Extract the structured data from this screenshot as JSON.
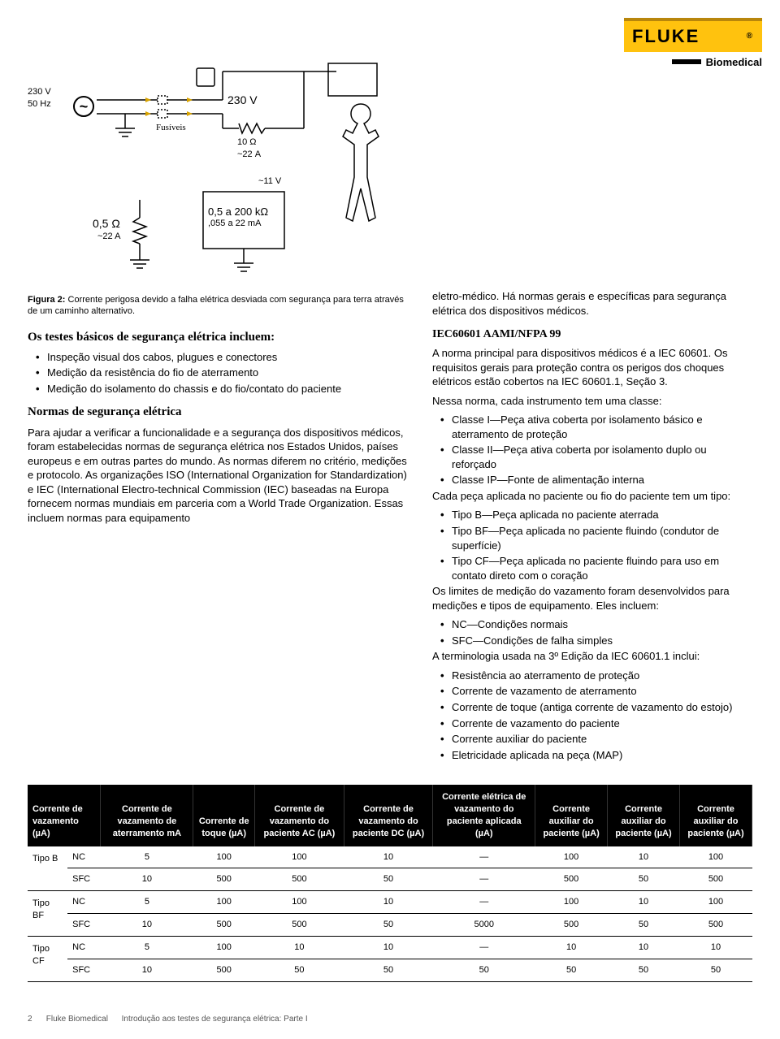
{
  "brand": {
    "name": "FLUKE",
    "reg": "®",
    "sub": "Biomedical",
    "brand_color": "#ffc20e",
    "bar_color": "#000000"
  },
  "diagram": {
    "src_v": "230 V",
    "src_f": "50 Hz",
    "fuse": "Fusíveis",
    "v230": "230 V",
    "r10": "10 Ω",
    "a22a": "~22 A",
    "r05": "0,5 Ω",
    "a22b": "~22 A",
    "v11": "~11 V",
    "rrange": "0,5 a 200 kΩ",
    "arange": ",055 a 22 mA"
  },
  "caption": {
    "b": "Figura 2:",
    "t": " Corrente perigosa devido a falha elétrica desviada com segurança para terra através de um caminho alternativo."
  },
  "h_testes": "Os testes básicos de segurança elétrica incluem:",
  "testes": [
    "Inspeção visual dos cabos, plugues e conectores",
    "Medição da resistência do fio de aterramento",
    "Medição do isolamento do chassis e do fio/contato do paciente"
  ],
  "h_normas": "Normas de segurança elétrica",
  "p_normas": "Para ajudar a verificar a funcionalidade e a segurança dos dispositivos médicos, foram estabelecidas normas de segurança elétrica nos Estados Unidos, países europeus e em outras partes do mundo. As normas diferem no critério, medições e protocolo. As organizações ISO (International Organization for Standardization) e IEC (International Electro-technical Commission (IEC) baseadas na Europa fornecem normas mundiais em parceria com a World Trade Organization. Essas incluem normas para equipamento",
  "p_intro": "eletro-médico. Há normas gerais e específicas para segurança elétrica dos dispositivos médicos.",
  "h_iec": "IEC60601 AAMI/NFPA 99",
  "p_iec": "A norma principal para dispositivos médicos é a IEC 60601. Os requisitos gerais para proteção contra os perigos dos choques elétricos estão cobertos na IEC 60601.1, Seção 3.",
  "p_classe": "Nessa norma, cada instrumento tem uma classe:",
  "classes": [
    "Classe I—Peça ativa coberta por isolamento básico e aterramento de proteção",
    "Classe II—Peça ativa coberta por isolamento duplo ou reforçado",
    "Classe IP—Fonte de alimentação interna"
  ],
  "p_tipo": "Cada peça aplicada no paciente ou fio do paciente tem um tipo:",
  "tipos": [
    "Tipo B—Peça aplicada no paciente aterrada",
    "Tipo BF—Peça aplicada no paciente fluindo (condutor de superfície)",
    "Tipo CF—Peça aplicada no paciente fluindo para uso em contato direto com o coração"
  ],
  "p_lim": "Os limites de medição do vazamento foram desenvolvidos para medições e tipos de equipamento. Eles incluem:",
  "lims": [
    "NC—Condições normais",
    "SFC—Condições de falha simples"
  ],
  "p_term": "A terminologia usada na 3º Edição da IEC 60601.1 inclui:",
  "terms": [
    "Resistência ao aterramento de proteção",
    "Corrente de vazamento de aterramento",
    "Corrente de toque (antiga corrente de vazamento do estojo)",
    "Corrente de vazamento do paciente",
    "Corrente auxiliar do paciente",
    "Eletricidade aplicada na peça (MAP)"
  ],
  "table": {
    "headers": [
      "Corrente de vazamento (µA)",
      "Corrente de vazamento de aterramento mA",
      "Corrente de toque (µA)",
      "Corrente de vazamento do paciente AC (µA)",
      "Corrente de vazamento do paciente DC (µA)",
      "Corrente elétrica de vazamento do paciente aplicada (µA)",
      "Corrente auxiliar do paciente (µA)",
      "Corrente auxiliar do paciente (µA)",
      "Corrente auxiliar do paciente (µA)"
    ],
    "groups": [
      {
        "type": "Tipo B",
        "rows": [
          [
            "NC",
            "5",
            "100",
            "100",
            "10",
            "—",
            "100",
            "10",
            "100"
          ],
          [
            "SFC",
            "10",
            "500",
            "500",
            "50",
            "—",
            "500",
            "50",
            "500"
          ]
        ]
      },
      {
        "type": "Tipo BF",
        "rows": [
          [
            "NC",
            "5",
            "100",
            "100",
            "10",
            "—",
            "100",
            "10",
            "100"
          ],
          [
            "SFC",
            "10",
            "500",
            "500",
            "50",
            "5000",
            "500",
            "50",
            "500"
          ]
        ]
      },
      {
        "type": "Tipo CF",
        "rows": [
          [
            "NC",
            "5",
            "100",
            "10",
            "10",
            "—",
            "10",
            "10",
            "10"
          ],
          [
            "SFC",
            "10",
            "500",
            "50",
            "50",
            "50",
            "50",
            "50",
            "50"
          ]
        ]
      }
    ]
  },
  "footer": {
    "page": "2",
    "brand": "Fluke Biomedical",
    "doc": "Introdução aos testes de segurança elétrica: Parte I"
  }
}
